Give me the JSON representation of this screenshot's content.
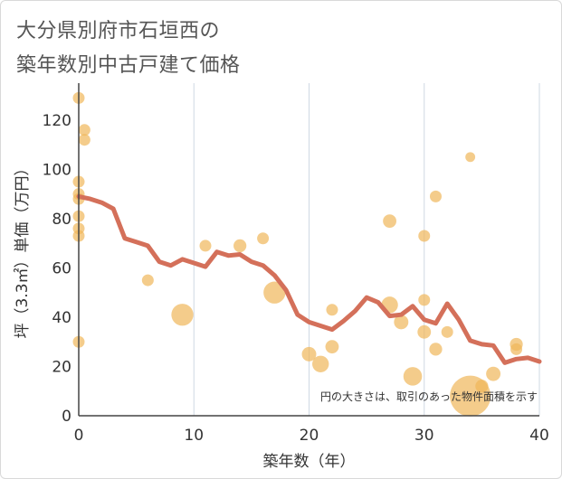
{
  "title": [
    "大分県別府市石垣西の",
    "築年数別中古戸建て価格"
  ],
  "chart_data": {
    "type": "scatter",
    "title": "大分県別府市石垣西の築年数別中古戸建て価格",
    "xlabel": "築年数（年）",
    "ylabel": "坪（3.3㎡）単価（万円）",
    "xlim": [
      0,
      40
    ],
    "ylim": [
      0,
      135
    ],
    "xticks": [
      0,
      10,
      20,
      30,
      40
    ],
    "yticks": [
      0,
      20,
      40,
      60,
      80,
      100,
      120
    ],
    "grid": "vertical",
    "annotation": "円の大きさは、取引のあった物件面積を示す",
    "colors": {
      "bubble": "#f0b65a",
      "line": "#d4705a",
      "grid": "#cfd8e3",
      "axis": "#444444"
    },
    "series": [
      {
        "kind": "bubble",
        "points": [
          {
            "x": 0,
            "y": 129,
            "s": 1
          },
          {
            "x": 0,
            "y": 95,
            "s": 1
          },
          {
            "x": 0,
            "y": 90,
            "s": 1
          },
          {
            "x": 0,
            "y": 88,
            "s": 1
          },
          {
            "x": 0,
            "y": 81,
            "s": 1
          },
          {
            "x": 0,
            "y": 76,
            "s": 1
          },
          {
            "x": 0,
            "y": 73,
            "s": 1
          },
          {
            "x": 0,
            "y": 30,
            "s": 1
          },
          {
            "x": 0.5,
            "y": 116,
            "s": 1
          },
          {
            "x": 0.5,
            "y": 112,
            "s": 1
          },
          {
            "x": 6,
            "y": 55,
            "s": 1
          },
          {
            "x": 9,
            "y": 41,
            "s": 3.5
          },
          {
            "x": 11,
            "y": 69,
            "s": 1
          },
          {
            "x": 14,
            "y": 69,
            "s": 1.2
          },
          {
            "x": 16,
            "y": 72,
            "s": 1
          },
          {
            "x": 17,
            "y": 50,
            "s": 3.5
          },
          {
            "x": 20,
            "y": 25,
            "s": 1.5
          },
          {
            "x": 21,
            "y": 21,
            "s": 2
          },
          {
            "x": 22,
            "y": 43,
            "s": 1
          },
          {
            "x": 22,
            "y": 28,
            "s": 1.3
          },
          {
            "x": 27,
            "y": 79,
            "s": 1.3
          },
          {
            "x": 27,
            "y": 45,
            "s": 2
          },
          {
            "x": 28,
            "y": 38,
            "s": 1.5
          },
          {
            "x": 29,
            "y": 16,
            "s": 2.5
          },
          {
            "x": 30,
            "y": 73,
            "s": 1
          },
          {
            "x": 30,
            "y": 47,
            "s": 1
          },
          {
            "x": 30,
            "y": 34,
            "s": 1.3
          },
          {
            "x": 31,
            "y": 89,
            "s": 1
          },
          {
            "x": 31,
            "y": 27,
            "s": 1.2
          },
          {
            "x": 32,
            "y": 34,
            "s": 1
          },
          {
            "x": 34,
            "y": 105,
            "s": 0.7
          },
          {
            "x": 34,
            "y": 8,
            "s": 12
          },
          {
            "x": 35,
            "y": 12,
            "s": 1.2
          },
          {
            "x": 36,
            "y": 17,
            "s": 1.5
          },
          {
            "x": 38,
            "y": 29,
            "s": 1.2
          },
          {
            "x": 38,
            "y": 27,
            "s": 1
          }
        ]
      },
      {
        "kind": "line",
        "x": [
          0,
          1,
          2,
          3,
          4,
          5,
          6,
          7,
          8,
          9,
          10,
          11,
          12,
          13,
          14,
          15,
          16,
          17,
          18,
          19,
          20,
          21,
          22,
          23,
          24,
          25,
          26,
          27,
          28,
          29,
          30,
          31,
          32,
          33,
          34,
          35,
          36,
          37,
          38,
          39,
          40
        ],
        "y": [
          89,
          88,
          86.5,
          84,
          72,
          70.5,
          69,
          62.5,
          61,
          63.5,
          62,
          60.5,
          66.5,
          65,
          65.5,
          62.5,
          61,
          57,
          51,
          41,
          38,
          36.5,
          35,
          38.5,
          42.5,
          48,
          46,
          40.5,
          41,
          44.5,
          39,
          37.5,
          45.5,
          39,
          30.5,
          29,
          28.5,
          21.5,
          23,
          23.5,
          22
        ]
      }
    ]
  }
}
